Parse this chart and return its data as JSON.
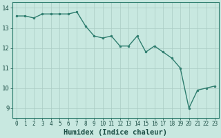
{
  "x": [
    0,
    1,
    2,
    3,
    4,
    5,
    6,
    7,
    8,
    9,
    10,
    11,
    12,
    13,
    14,
    15,
    16,
    17,
    18,
    19,
    20,
    21,
    22,
    23
  ],
  "y": [
    13.6,
    13.6,
    13.5,
    13.7,
    13.7,
    13.7,
    13.7,
    13.8,
    13.1,
    12.6,
    12.5,
    12.6,
    12.1,
    12.1,
    12.6,
    11.8,
    12.1,
    11.8,
    11.5,
    11.0,
    9.0,
    9.9,
    10.0,
    10.1
  ],
  "line_color": "#2e7d6e",
  "marker": "o",
  "markersize": 2,
  "linewidth": 1.0,
  "bg_color": "#c8e8e0",
  "grid_color": "#aaccC4",
  "xlabel": "Humidex (Indice chaleur)",
  "xlabel_fontsize": 7.5,
  "xlabel_color": "#1a4d44",
  "ylabel_ticks": [
    9,
    10,
    11,
    12,
    13,
    14
  ],
  "xlim": [
    -0.5,
    23.5
  ],
  "ylim": [
    8.5,
    14.3
  ],
  "xtick_fontsize": 5.5,
  "ytick_fontsize": 6.5,
  "tick_color": "#1a4d44",
  "spine_color": "#2e7d6e"
}
